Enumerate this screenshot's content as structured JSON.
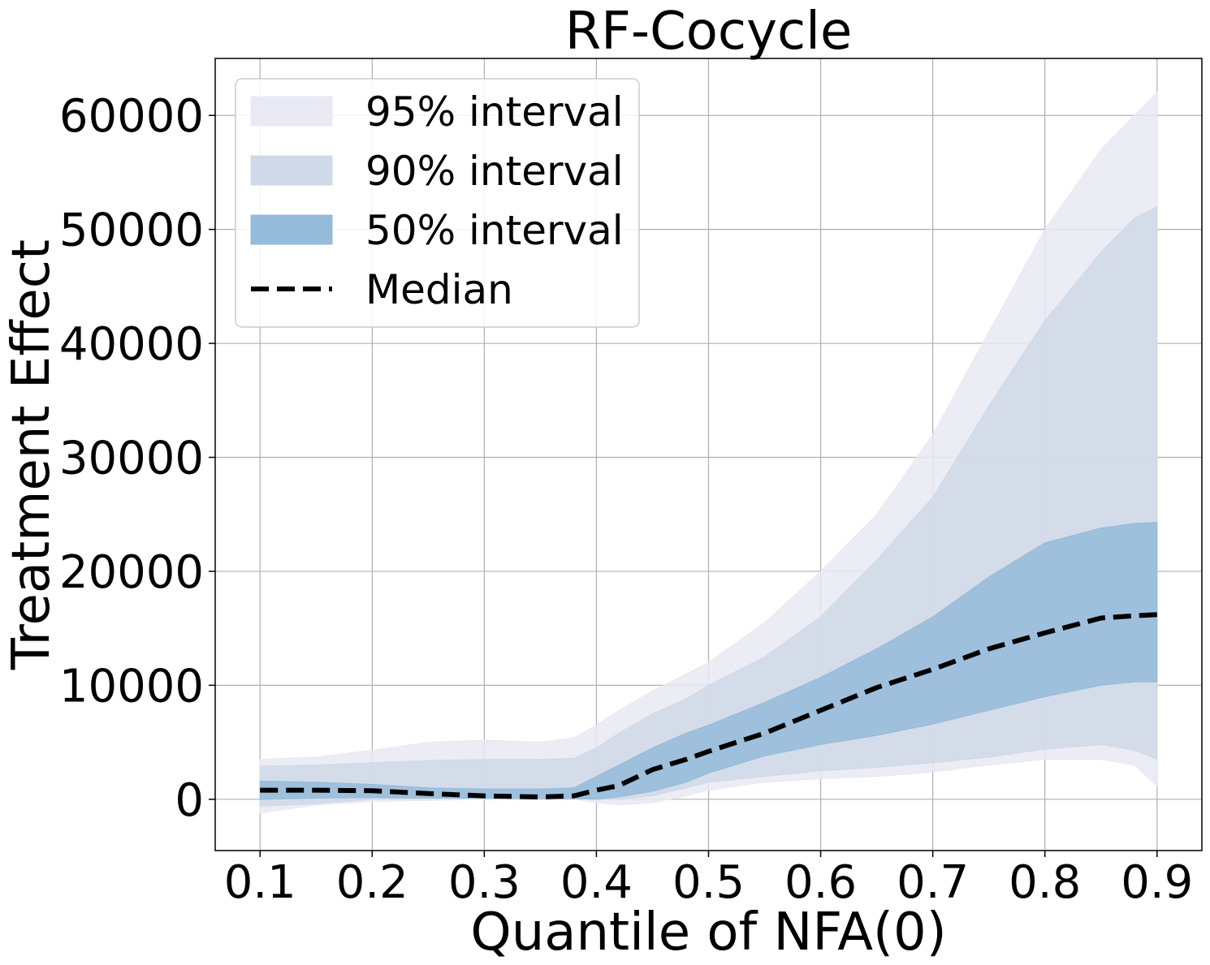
{
  "chart_data": {
    "type": "area",
    "title": "RF-Cocycle",
    "xlabel": "Quantile of NFA(0)",
    "ylabel": "Treatment Effect",
    "xlim": [
      0.06,
      0.94
    ],
    "ylim": [
      -4500,
      65000
    ],
    "xticks": [
      0.1,
      0.2,
      0.3,
      0.4,
      0.5,
      0.6,
      0.7,
      0.8,
      0.9
    ],
    "xtick_labels": [
      "0.1",
      "0.2",
      "0.3",
      "0.4",
      "0.5",
      "0.6",
      "0.7",
      "0.8",
      "0.9"
    ],
    "yticks": [
      0,
      10000,
      20000,
      30000,
      40000,
      50000,
      60000
    ],
    "ytick_labels": [
      "0",
      "10000",
      "20000",
      "30000",
      "40000",
      "50000",
      "60000"
    ],
    "grid": true,
    "legend_position": "upper-left",
    "x": [
      0.1,
      0.15,
      0.2,
      0.25,
      0.3,
      0.35,
      0.38,
      0.4,
      0.42,
      0.45,
      0.48,
      0.5,
      0.55,
      0.6,
      0.65,
      0.7,
      0.75,
      0.8,
      0.85,
      0.88,
      0.9
    ],
    "bands": [
      {
        "name": "95% interval",
        "color": "#e8e9f2",
        "lower": [
          -1200,
          -500,
          -200,
          -100,
          0,
          0,
          0,
          -300,
          -500,
          -300,
          300,
          800,
          1500,
          1800,
          2000,
          2400,
          3000,
          3500,
          3500,
          3000,
          1200
        ],
        "upper": [
          3500,
          3700,
          4300,
          5000,
          5200,
          5000,
          5400,
          6500,
          7800,
          9500,
          11000,
          12000,
          15500,
          20000,
          25000,
          32000,
          41000,
          50000,
          57000,
          60000,
          62000
        ]
      },
      {
        "name": "90% interval",
        "color": "#d0d9e8",
        "lower": [
          -600,
          -400,
          0,
          100,
          200,
          200,
          100,
          0,
          0,
          300,
          1000,
          1500,
          2000,
          2500,
          2800,
          3200,
          3700,
          4400,
          4800,
          4300,
          3500
        ],
        "upper": [
          2900,
          3000,
          3200,
          3400,
          3500,
          3500,
          3600,
          4500,
          5800,
          7500,
          8800,
          10000,
          12500,
          16000,
          21000,
          26500,
          34500,
          42000,
          48000,
          51000,
          52000
        ]
      },
      {
        "name": "50% interval",
        "color": "#94bbd9",
        "lower": [
          0,
          100,
          150,
          100,
          80,
          50,
          50,
          0,
          200,
          700,
          1500,
          2300,
          3800,
          4800,
          5600,
          6600,
          7800,
          9000,
          10000,
          10300,
          10300
        ],
        "upper": [
          1600,
          1500,
          1300,
          1000,
          900,
          900,
          1000,
          2000,
          3000,
          4500,
          5800,
          6500,
          8500,
          10700,
          13200,
          16000,
          19500,
          22500,
          23800,
          24200,
          24300
        ]
      }
    ],
    "series": [
      {
        "name": "Median",
        "style": "dashed",
        "color": "#000000",
        "values": [
          800,
          800,
          750,
          500,
          300,
          200,
          300,
          800,
          1200,
          2600,
          3500,
          4200,
          5800,
          7800,
          9800,
          11400,
          13200,
          14600,
          15900,
          16100,
          16200
        ]
      }
    ]
  }
}
